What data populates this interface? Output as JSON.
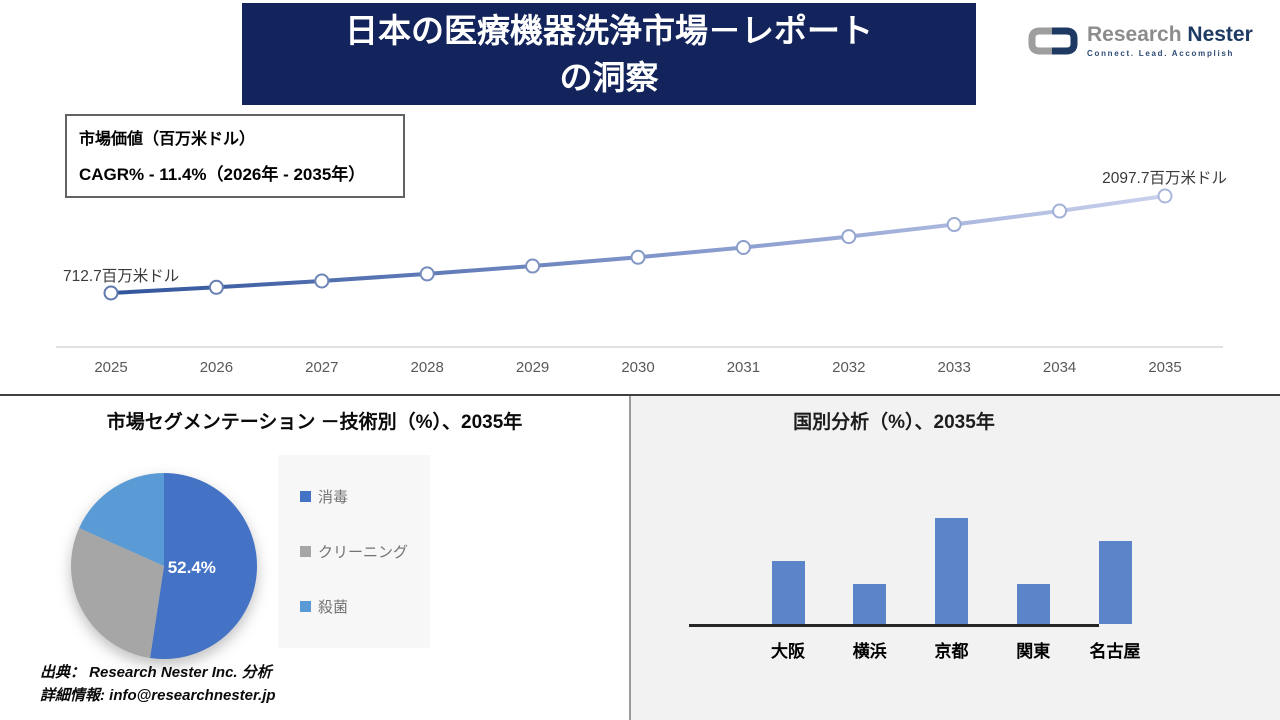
{
  "header": {
    "title_line1": "日本の医療機器洗浄市場－レポート",
    "title_line2": "の洞察",
    "logo": {
      "name_part1": "Research",
      "name_part2": "Nester",
      "tagline": "Connect. Lead. Accomplish"
    }
  },
  "info_box": {
    "line1": "市場価値（百万米ドル）",
    "line2": "CAGR% - 11.4%（2026年 - 2035年）"
  },
  "chart_data": [
    {
      "type": "line",
      "title": "市場価値（百万米ドル）",
      "cagr_label": "CAGR% - 11.4%（2026年 - 2035年）",
      "x": [
        2025,
        2026,
        2027,
        2028,
        2029,
        2030,
        2031,
        2032,
        2033,
        2034,
        2035
      ],
      "values": [
        712.7,
        794.0,
        884.5,
        985.3,
        1097.7,
        1222.9,
        1362.3,
        1517.6,
        1690.6,
        1883.3,
        2097.7
      ],
      "start_label": "712.7百万米ドル",
      "end_label": "2097.7百万米ドル",
      "ylim": [
        712.7,
        2097.7
      ],
      "grid": false,
      "line_gradient": [
        "#30549B",
        "#7E93C9",
        "#C9D1EC"
      ],
      "marker_fill": "#FFFFFF",
      "axis_color": "#D9D9D9",
      "tick_color": "#595959"
    },
    {
      "type": "pie",
      "title": "市場セグメンテーション －技術別（%）、2035年",
      "slices": [
        {
          "label": "消毒",
          "value": 52.4,
          "color": "#4472C4",
          "display_label": "52.4%"
        },
        {
          "label": "クリーニング",
          "value": 29.3,
          "color": "#A6A6A6"
        },
        {
          "label": "殺菌",
          "value": 18.3,
          "color": "#5B9BD5"
        }
      ],
      "legend_position": "right"
    },
    {
      "type": "bar",
      "title": "国別分析（%）、2035年",
      "categories": [
        "大阪",
        "横浜",
        "京都",
        "関東",
        "名古屋"
      ],
      "values": [
        19,
        12,
        32,
        12,
        25
      ],
      "bar_color": "#5B84C9",
      "grid": false
    }
  ],
  "footer": {
    "source": "出典： Research Nester Inc. 分析",
    "contact": "詳細情報: info@researchnester.jp"
  }
}
